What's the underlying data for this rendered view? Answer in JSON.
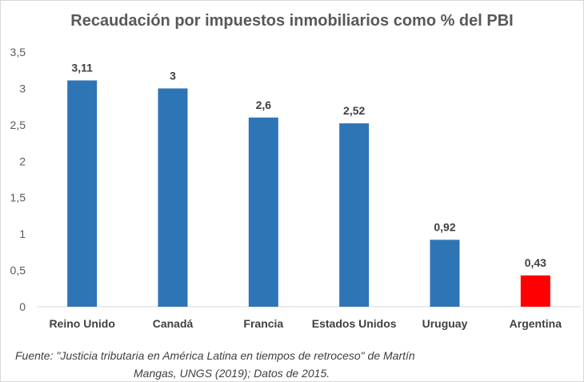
{
  "chart_data": {
    "type": "bar",
    "title": "Recaudación por impuestos inmobiliarios como % del PBI",
    "categories": [
      "Reino Unido",
      "Canadá",
      "Francia",
      "Estados Unidos",
      "Uruguay",
      "Argentina"
    ],
    "values": [
      3.11,
      3,
      2.6,
      2.52,
      0.92,
      0.43
    ],
    "value_labels": [
      "3,11",
      "3",
      "2,6",
      "2,52",
      "0,92",
      "0,43"
    ],
    "bar_colors": [
      "#2e75b6",
      "#2e75b6",
      "#2e75b6",
      "#2e75b6",
      "#2e75b6",
      "#ff0000"
    ],
    "ylim": [
      0,
      3.5
    ],
    "yticks": [
      0,
      0.5,
      1,
      1.5,
      2,
      2.5,
      3,
      3.5
    ],
    "ytick_labels": [
      "0",
      "0,5",
      "1",
      "1,5",
      "2",
      "2,5",
      "3",
      "3,5"
    ],
    "xlabel": "",
    "ylabel": "",
    "grid": false,
    "legend": "none"
  },
  "source": {
    "line1": "Fuente: \"Justicia tributaria en América Latina en tiempos de retroceso\" de Martín",
    "line2": "Mangas, UNGS (2019); Datos de 2015."
  }
}
